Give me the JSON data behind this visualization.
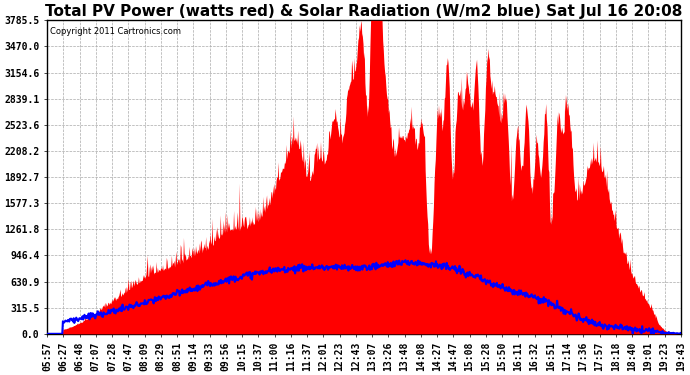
{
  "title": "Total PV Power (watts red) & Solar Radiation (W/m2 blue) Sat Jul 16 20:08",
  "copyright_text": "Copyright 2011 Cartronics.com",
  "background_color": "#ffffff",
  "plot_bg_color": "#ffffff",
  "grid_color": "#aaaaaa",
  "y_ticks": [
    0.0,
    315.5,
    630.9,
    946.4,
    1261.8,
    1577.3,
    1892.7,
    2208.2,
    2523.6,
    2839.1,
    3154.6,
    3470.0,
    3785.5
  ],
  "x_tick_labels": [
    "05:57",
    "06:27",
    "06:48",
    "07:07",
    "07:28",
    "07:47",
    "08:09",
    "08:29",
    "08:51",
    "09:14",
    "09:33",
    "09:56",
    "10:15",
    "10:37",
    "11:00",
    "11:16",
    "11:37",
    "12:01",
    "12:23",
    "12:43",
    "13:07",
    "13:26",
    "13:48",
    "14:08",
    "14:27",
    "14:47",
    "15:08",
    "15:28",
    "15:50",
    "16:11",
    "16:32",
    "16:51",
    "17:14",
    "17:36",
    "17:57",
    "18:18",
    "18:40",
    "19:01",
    "19:23",
    "19:43"
  ],
  "y_min": 0.0,
  "y_max": 3785.5,
  "pv_color": "#ff0000",
  "solar_color": "#0000ff",
  "title_fontsize": 11,
  "tick_fontsize": 7
}
